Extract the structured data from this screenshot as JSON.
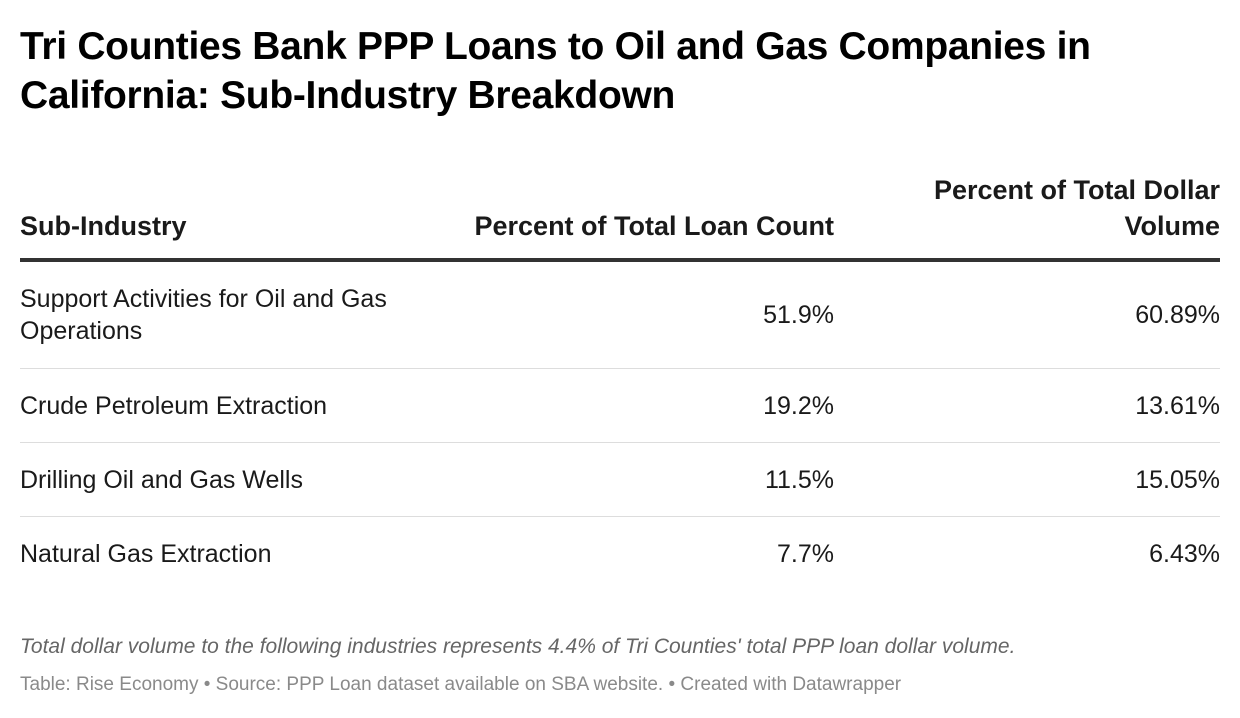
{
  "title": "Tri Counties Bank PPP Loans to Oil and Gas Companies in California: Sub-Industry Breakdown",
  "chart_data": {
    "type": "table",
    "columns": [
      "Sub-Industry",
      "Percent of Total Loan Count",
      "Percent of Total Dollar Volume"
    ],
    "rows": [
      [
        "Support Activities for Oil and Gas Operations",
        "51.9%",
        "60.89%"
      ],
      [
        "Crude Petroleum Extraction",
        "19.2%",
        "13.61%"
      ],
      [
        "Drilling Oil and Gas Wells",
        "11.5%",
        "15.05%"
      ],
      [
        "Natural Gas Extraction",
        "7.7%",
        "6.43%"
      ]
    ]
  },
  "notes": "Total dollar volume to the following industries represents 4.4% of Tri Counties' total PPP loan dollar volume.",
  "footer": "Table: Rise Economy • Source: PPP Loan dataset available on SBA website. • Created with Datawrapper",
  "colors": {
    "text": "#1a1a1a",
    "header_rule": "#333333",
    "row_rule": "#dddddd",
    "notes": "#666666",
    "footer": "#8a8a8a"
  }
}
